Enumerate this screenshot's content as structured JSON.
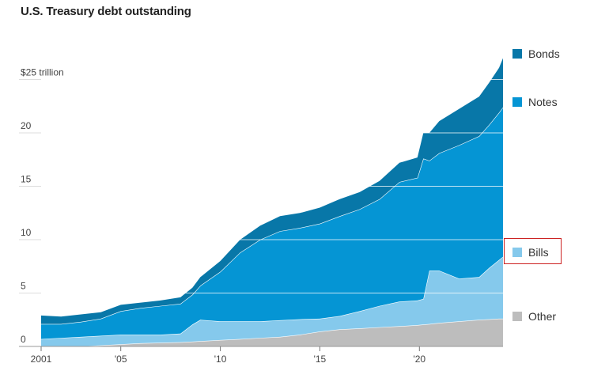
{
  "chart_data": {
    "type": "area",
    "title": "U.S. Treasury debt outstanding",
    "y_top_label": "$25 trillion",
    "yticks": [
      0,
      5,
      10,
      15,
      20,
      25
    ],
    "ytick_labels": [
      "0",
      "5",
      "10",
      "15",
      "20",
      "$25 trillion"
    ],
    "ylim": [
      0,
      28
    ],
    "xlim": [
      2001.0,
      2024.2
    ],
    "xticks": [
      2001,
      2005,
      2010,
      2015,
      2020
    ],
    "xtick_labels": [
      "2001",
      "'05",
      "'10",
      "'15",
      "'20"
    ],
    "stacked": true,
    "x": [
      2001.0,
      2002.0,
      2003.0,
      2004.0,
      2005.0,
      2006.0,
      2007.0,
      2008.0,
      2008.6,
      2009.0,
      2010.0,
      2011.0,
      2012.0,
      2013.0,
      2014.0,
      2015.0,
      2016.0,
      2017.0,
      2018.0,
      2019.0,
      2019.9,
      2020.2,
      2020.5,
      2021.0,
      2022.0,
      2023.0,
      2023.5,
      2024.0,
      2024.2
    ],
    "series": [
      {
        "name": "Other",
        "color": "#bdbdbd",
        "values": [
          0.0,
          0.0,
          0.0,
          0.1,
          0.2,
          0.3,
          0.35,
          0.4,
          0.45,
          0.5,
          0.6,
          0.7,
          0.8,
          0.9,
          1.1,
          1.4,
          1.6,
          1.7,
          1.8,
          1.9,
          2.0,
          2.05,
          2.1,
          2.2,
          2.35,
          2.5,
          2.55,
          2.6,
          2.6
        ]
      },
      {
        "name": "Bills",
        "color": "#85c9ec",
        "values": [
          0.7,
          0.8,
          0.9,
          0.9,
          0.9,
          0.8,
          0.75,
          0.8,
          1.6,
          2.0,
          1.75,
          1.65,
          1.55,
          1.55,
          1.45,
          1.2,
          1.25,
          1.6,
          2.0,
          2.3,
          2.3,
          2.4,
          5.0,
          4.9,
          4.0,
          4.0,
          4.8,
          5.5,
          5.8
        ]
      },
      {
        "name": "Notes",
        "color": "#0595d4",
        "values": [
          1.4,
          1.3,
          1.4,
          1.6,
          2.2,
          2.5,
          2.7,
          2.8,
          2.8,
          3.2,
          4.65,
          6.45,
          7.65,
          8.35,
          8.55,
          8.9,
          9.35,
          9.55,
          10.0,
          11.2,
          11.5,
          13.15,
          10.3,
          11.0,
          12.5,
          13.2,
          13.4,
          13.8,
          14.0
        ]
      },
      {
        "name": "Bonds",
        "color": "#0877a8",
        "values": [
          0.8,
          0.7,
          0.7,
          0.6,
          0.6,
          0.5,
          0.5,
          0.6,
          0.65,
          0.8,
          1.0,
          1.2,
          1.3,
          1.4,
          1.4,
          1.5,
          1.6,
          1.6,
          1.7,
          1.8,
          1.9,
          2.4,
          2.6,
          3.0,
          3.4,
          3.7,
          3.95,
          4.2,
          4.6
        ]
      }
    ],
    "legend_placement": "right",
    "grid": "horizontal",
    "highlighted_legend_item": "Bills"
  },
  "legend": {
    "bonds": "Bonds",
    "notes": "Notes",
    "bills": "Bills",
    "other": "Other"
  }
}
